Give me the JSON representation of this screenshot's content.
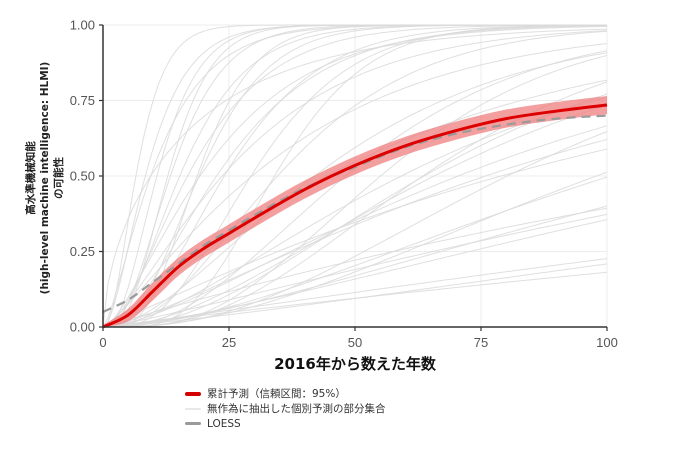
{
  "chart_data": {
    "type": "line",
    "title": "",
    "xlabel": "2016年から数えた年数",
    "ylabel_lines": [
      "高水準機械知能",
      "(high-level machine intelligence: HLMI)",
      "の可能性"
    ],
    "xlim": [
      0,
      100
    ],
    "ylim": [
      0,
      1
    ],
    "x_ticks": [
      "0",
      "25",
      "50",
      "75",
      "100"
    ],
    "y_ticks": [
      "0.00",
      "0.25",
      "0.50",
      "0.75",
      "1.00"
    ],
    "grid": true,
    "legend_position": "bottom",
    "series": [
      {
        "name": "累計予測（信頼区間：95%）",
        "color": "#e00000",
        "band_color": "#f08a8a",
        "x": [
          0,
          5,
          10,
          15,
          20,
          25,
          30,
          40,
          50,
          60,
          70,
          80,
          90,
          100
        ],
        "values": [
          0.0,
          0.04,
          0.12,
          0.2,
          0.26,
          0.31,
          0.36,
          0.455,
          0.535,
          0.6,
          0.65,
          0.69,
          0.715,
          0.735
        ],
        "band_halfwidth": 0.03
      },
      {
        "name": "LOESS",
        "color": "#999999",
        "dashed": true,
        "x": [
          0,
          5,
          10,
          15,
          20,
          25,
          30,
          40,
          50,
          60,
          70,
          80,
          90,
          100
        ],
        "values": [
          0.05,
          0.09,
          0.15,
          0.21,
          0.27,
          0.32,
          0.37,
          0.46,
          0.53,
          0.595,
          0.64,
          0.67,
          0.69,
          0.7
        ]
      },
      {
        "name": "無作為に抽出した個別予測の部分集合",
        "color": "#d9d9d9",
        "note": "many individual gamma-CDF curves",
        "params": [
          [
            2.5,
            3
          ],
          [
            3,
            4
          ],
          [
            4,
            3.5
          ],
          [
            3,
            5
          ],
          [
            2.5,
            7
          ],
          [
            3.5,
            6
          ],
          [
            2,
            10
          ],
          [
            3,
            9
          ],
          [
            2.2,
            12
          ],
          [
            4,
            8
          ],
          [
            1.6,
            15
          ],
          [
            2.8,
            14
          ],
          [
            1.5,
            20
          ],
          [
            3,
            18
          ],
          [
            2,
            25
          ],
          [
            1.3,
            30
          ],
          [
            2.6,
            28
          ],
          [
            1.8,
            40
          ],
          [
            1.2,
            50
          ],
          [
            3,
            30
          ],
          [
            1.4,
            70
          ],
          [
            1.1,
            100
          ],
          [
            2,
            60
          ],
          [
            1.5,
            120
          ],
          [
            1,
            200
          ],
          [
            1.3,
            250
          ],
          [
            2.5,
            45
          ],
          [
            3.5,
            20
          ],
          [
            1.7,
            90
          ],
          [
            1.2,
            160
          ],
          [
            5,
            4
          ],
          [
            6,
            6
          ],
          [
            2,
            5
          ],
          [
            1.5,
            8
          ],
          [
            4,
            15
          ],
          [
            2.2,
            35
          ],
          [
            1.6,
            55
          ],
          [
            1.1,
            320
          ],
          [
            1,
            500
          ],
          [
            0.6,
            30
          ]
        ]
      }
    ]
  },
  "legend": {
    "items": [
      {
        "label": "累計予測（信頼区間：95%）",
        "color": "#d40000",
        "height": 4
      },
      {
        "label": "無作為に抽出した個別予測の部分集合",
        "color": "#e8e8e8",
        "height": 2
      },
      {
        "label": "LOESS",
        "color": "#9a9a9a",
        "height": 3
      }
    ]
  }
}
